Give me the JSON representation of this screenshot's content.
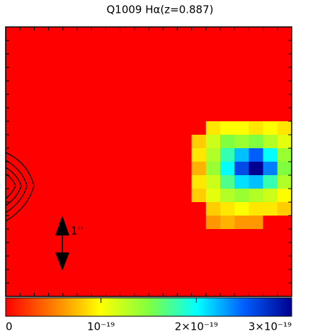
{
  "chart_data": {
    "type": "heatmap",
    "title": "Q1009 Hα(z=0.887)",
    "scale_label": "1''",
    "clim": [
      0,
      3e-19
    ],
    "cticks": [
      0,
      {
        "value": 1e-19,
        "label": "10⁻¹⁹"
      },
      {
        "value": 2e-19,
        "label": "2×10⁻¹⁹"
      },
      {
        "value": 3e-19,
        "label": "3×10⁻¹⁹"
      }
    ],
    "values": [
      [
        0,
        0,
        0,
        0,
        0,
        0,
        0,
        0,
        0,
        0,
        0,
        0,
        0,
        0,
        0,
        0,
        0,
        0,
        0,
        0
      ],
      [
        0,
        0,
        0,
        0,
        0,
        0,
        0,
        0,
        0,
        0,
        0,
        0,
        0,
        0,
        0,
        0,
        0,
        0,
        0,
        0
      ],
      [
        0,
        0,
        0,
        0,
        0,
        0,
        0,
        0,
        0,
        0,
        0,
        0,
        0,
        0,
        0,
        0,
        0,
        0,
        0,
        0
      ],
      [
        0,
        0,
        0,
        0,
        0,
        0,
        0,
        0,
        0,
        0,
        0,
        0,
        0,
        0,
        0,
        0,
        0,
        0,
        0,
        0
      ],
      [
        0,
        0,
        0,
        0,
        0,
        0,
        0,
        0,
        0,
        0,
        0,
        0,
        0,
        0,
        0,
        0,
        0,
        0,
        0,
        0
      ],
      [
        0,
        0,
        0,
        0,
        0,
        0,
        0,
        0,
        0,
        0,
        0,
        0,
        0,
        0,
        0,
        0,
        0,
        0,
        0,
        0
      ],
      [
        0,
        0,
        0,
        0,
        0,
        0,
        0,
        0,
        0,
        0,
        0,
        0,
        0,
        0,
        0,
        0,
        0,
        0,
        0,
        0
      ],
      [
        0,
        0,
        0,
        0,
        0,
        0,
        0,
        0,
        0,
        0,
        0,
        0,
        0,
        0,
        9e-20,
        1e-19,
        1e-19,
        9e-20,
        1e-19,
        9e-20
      ],
      [
        0,
        0,
        0,
        0,
        0,
        0,
        0,
        0,
        0,
        0,
        0,
        0,
        0,
        8e-20,
        1.2e-19,
        1.5e-19,
        1.4e-19,
        1.5e-19,
        1.3e-19,
        1.1e-19
      ],
      [
        0,
        0,
        0,
        0,
        0,
        0,
        0,
        0,
        0,
        0,
        0,
        0,
        0,
        9e-20,
        1.3e-19,
        1.8e-19,
        2.2e-19,
        2.5e-19,
        2e-19,
        1.4e-19
      ],
      [
        0,
        0,
        0,
        0,
        0,
        0,
        0,
        0,
        0,
        0,
        0,
        0,
        0,
        7e-20,
        1.4e-19,
        2e-19,
        2.6e-19,
        3e-19,
        2.4e-19,
        1.5e-19
      ],
      [
        0,
        0,
        0,
        0,
        0,
        0,
        0,
        0,
        0,
        0,
        0,
        0,
        0,
        9e-20,
        1.2e-19,
        1.7e-19,
        2.1e-19,
        2.2e-19,
        1.8e-19,
        1.3e-19
      ],
      [
        0,
        0,
        0,
        0,
        0,
        0,
        0,
        0,
        0,
        0,
        0,
        0,
        0,
        8e-20,
        1.1e-19,
        1.3e-19,
        1.4e-19,
        1.3e-19,
        1.2e-19,
        1e-19
      ],
      [
        0,
        0,
        0,
        0,
        0,
        0,
        0,
        0,
        0,
        0,
        0,
        0,
        0,
        0,
        8e-20,
        9e-20,
        1e-19,
        9e-20,
        9e-20,
        8e-20
      ],
      [
        0,
        0,
        0,
        0,
        0,
        0,
        0,
        0,
        0,
        0,
        0,
        0,
        0,
        0,
        6e-20,
        7e-20,
        6e-20,
        6e-20,
        0,
        0
      ],
      [
        0,
        0,
        0,
        0,
        0,
        0,
        0,
        0,
        0,
        0,
        0,
        0,
        0,
        0,
        0,
        0,
        0,
        0,
        0,
        0
      ],
      [
        0,
        0,
        0,
        0,
        0,
        0,
        0,
        0,
        0,
        0,
        0,
        0,
        0,
        0,
        0,
        0,
        0,
        0,
        0,
        0
      ],
      [
        0,
        0,
        0,
        0,
        0,
        0,
        0,
        0,
        0,
        0,
        0,
        0,
        0,
        0,
        0,
        0,
        0,
        0,
        0,
        0
      ],
      [
        0,
        0,
        0,
        0,
        0,
        0,
        0,
        0,
        0,
        0,
        0,
        0,
        0,
        0,
        0,
        0,
        0,
        0,
        0,
        0
      ],
      [
        0,
        0,
        0,
        0,
        0,
        0,
        0,
        0,
        0,
        0,
        0,
        0,
        0,
        0,
        0,
        0,
        0,
        0,
        0,
        0
      ]
    ]
  }
}
